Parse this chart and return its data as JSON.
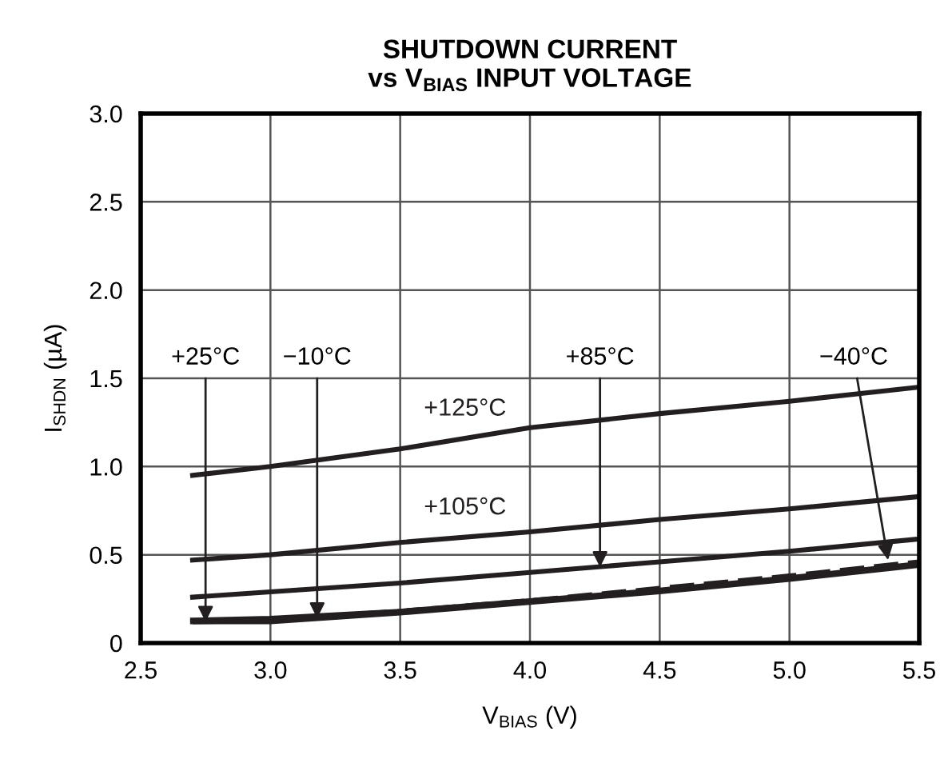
{
  "chart_data": {
    "type": "line",
    "title": "SHUTDOWN CURRENT\nvs V$_{BIAS}$ INPUT VOLTAGE",
    "xlabel": "V$_{BIAS}$ (V)",
    "ylabel": "I$_{SHDN}$ (µA)",
    "x": [
      2.7,
      3.0,
      3.5,
      4.0,
      4.5,
      5.0,
      5.5
    ],
    "series": [
      {
        "name": "+125°C",
        "color": "#231f20",
        "values": [
          0.95,
          1.0,
          1.1,
          1.22,
          1.3,
          1.37,
          1.45
        ]
      },
      {
        "name": "+105°C",
        "color": "#231f20",
        "values": [
          0.47,
          0.5,
          0.57,
          0.63,
          0.7,
          0.76,
          0.83
        ]
      },
      {
        "color": "#231f20",
        "values": [
          0.26,
          0.29,
          0.34,
          0.4,
          0.46,
          0.52,
          0.59
        ]
      },
      {
        "color": "#231f20",
        "values": [
          0.12,
          0.12,
          0.17,
          0.23,
          0.29,
          0.36,
          0.44
        ]
      },
      {
        "color": "#231f20",
        "values": [
          0.13,
          0.14,
          0.18,
          0.24,
          0.3,
          0.37,
          0.45
        ]
      },
      {
        "color": "#231f20",
        "line_style": "dashed",
        "values": [
          0.12,
          0.13,
          0.18,
          0.24,
          0.31,
          0.38,
          0.46
        ]
      }
    ],
    "annotations": [
      {
        "text": "+25°C",
        "x": 2.75,
        "y": 0.12
      },
      {
        "text": "−10°C",
        "x": 3.18,
        "y": 0.14
      },
      {
        "text": "+85°C",
        "x": 4.27,
        "y": 0.43
      },
      {
        "text": "−40°C",
        "x": 5.38,
        "y": 0.47
      }
    ],
    "xlim": [
      2.5,
      5.5
    ],
    "xticks": [
      {
        "value": 2.5,
        "label": "2.5"
      },
      {
        "value": 3.0,
        "label": "3.0"
      },
      {
        "value": 3.5,
        "label": "3.5"
      },
      {
        "value": 4.0,
        "label": "4.0"
      },
      {
        "value": 4.5,
        "label": "4.5"
      },
      {
        "value": 5.0,
        "label": "5.0"
      },
      {
        "value": 5.5,
        "label": "5.5"
      }
    ],
    "ylim": [
      0,
      3.0
    ],
    "yticks": [
      0,
      {
        "value": 0.5,
        "label": "0.5"
      },
      {
        "value": 1.0,
        "label": "1.0"
      },
      {
        "value": 1.5,
        "label": "1.5"
      },
      {
        "value": 2.0,
        "label": "2.0"
      },
      {
        "value": 2.5,
        "label": "2.5"
      },
      {
        "value": 3.0,
        "label": "3.0"
      }
    ],
    "grid": true,
    "legend": false,
    "marker": "none",
    "line_style": "solid"
  }
}
